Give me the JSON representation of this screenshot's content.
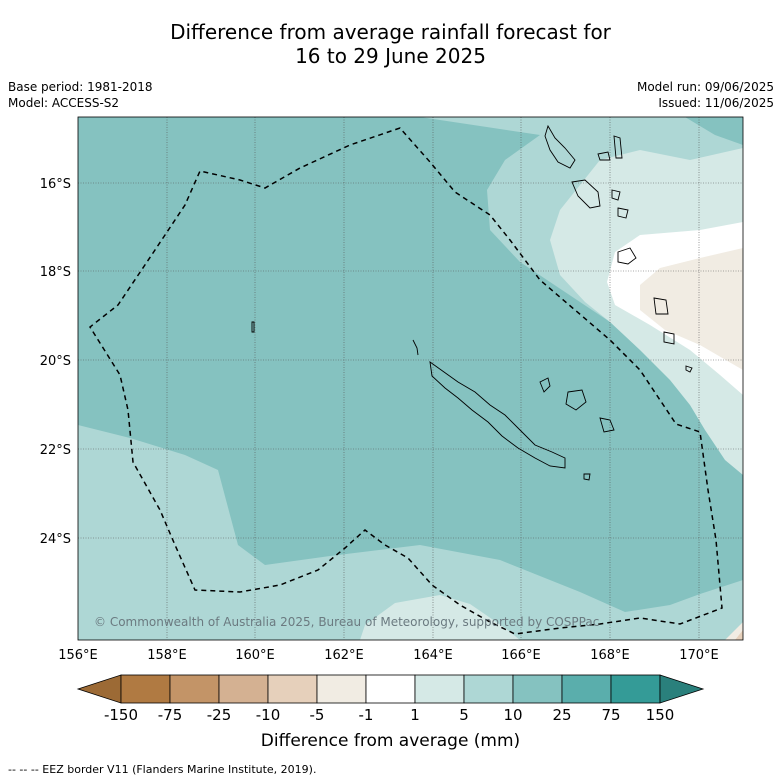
{
  "title_line1": "Difference from average rainfall forecast for",
  "title_line2": "16 to 29 June 2025",
  "base_period": "Base period: 1981-2018",
  "model": "Model: ACCESS-S2",
  "model_run": "Model run: 09/06/2025",
  "issued": "Issued: 11/06/2025",
  "copyright": "© Commonwealth of Australia 2025, Bureau of Meteorology, supported by COSPPac",
  "lat_labels": [
    "16°S",
    "18°S",
    "20°S",
    "22°S",
    "24°S"
  ],
  "lon_labels": [
    "156°E",
    "158°E",
    "160°E",
    "162°E",
    "164°E",
    "166°E",
    "168°E",
    "170°E"
  ],
  "colorbar": {
    "title": "Difference from average (mm)",
    "ticks": [
      "-150",
      "-75",
      "-25",
      "-10",
      "-5",
      "-1",
      "1",
      "5",
      "10",
      "25",
      "75",
      "150"
    ],
    "colors": [
      "#9c6a35",
      "#b07a42",
      "#c39467",
      "#d4b192",
      "#e6d0bb",
      "#f1ece3",
      "#ffffff",
      "#d5e9e6",
      "#aed7d5",
      "#85c2c0",
      "#5aaeac",
      "#349b97",
      "#2a807c"
    ]
  },
  "legend_footnote": "--  --  -- EEZ border V11 (Flanders Marine Institute, 2019)."
}
